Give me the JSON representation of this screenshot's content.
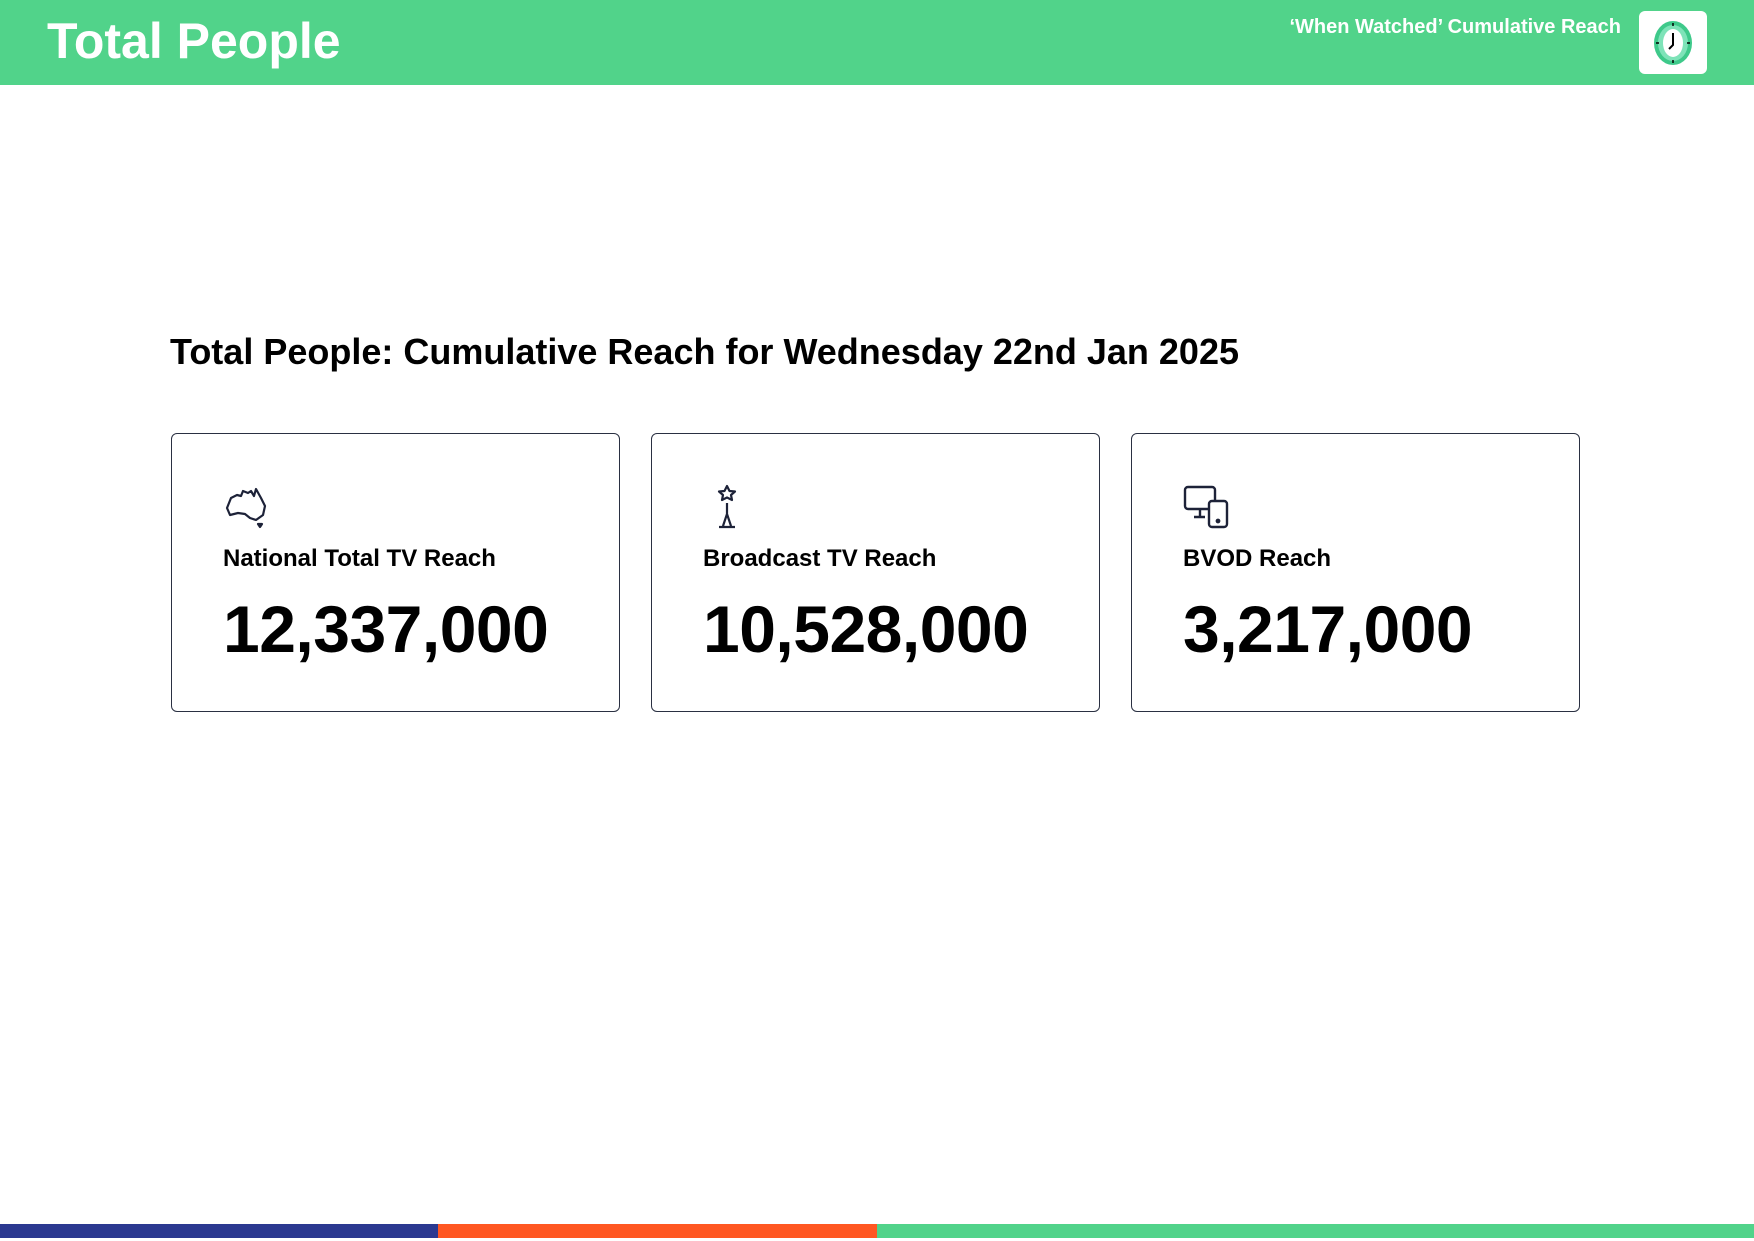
{
  "header": {
    "title": "Total People",
    "subtitle": "‘When Watched’ Cumulative Reach",
    "logo_icon": "clock-icon",
    "background_color": "#51d38a"
  },
  "main": {
    "heading": "Total People: Cumulative Reach for Wednesday 22nd Jan 2025",
    "cards": [
      {
        "icon": "australia-map-icon",
        "label": "National Total TV Reach",
        "value": "12,337,000"
      },
      {
        "icon": "broadcast-tower-icon",
        "label": "Broadcast TV Reach",
        "value": "10,528,000"
      },
      {
        "icon": "devices-icon",
        "label": "BVOD Reach",
        "value": "3,217,000"
      }
    ]
  },
  "footer": {
    "stripe_colors": [
      "#2b3990",
      "#ff5722",
      "#51d38a"
    ]
  }
}
